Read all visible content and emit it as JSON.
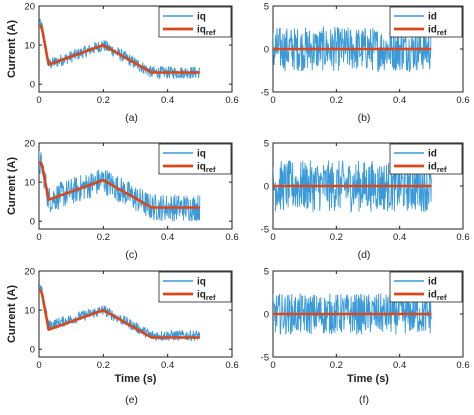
{
  "chart_data": [
    {
      "type": "line",
      "panel_label": "(a)",
      "ylabel": "Current (A)",
      "xlabel": "",
      "xlim": [
        0,
        0.6
      ],
      "ylim": [
        -2,
        20
      ],
      "xticks": [
        "0",
        "0.2",
        "0.4",
        "0.6"
      ],
      "yticks": [
        "0",
        "10",
        "20"
      ],
      "legend_position": "top-right",
      "series": [
        {
          "name": "iq",
          "kind": "noisy",
          "color": "#3a9ad9",
          "x": [
            0,
            0.01,
            0.03,
            0.2,
            0.35,
            0.5
          ],
          "values": [
            15.5,
            14.5,
            5,
            10,
            3,
            3
          ],
          "noise": 1.6
        },
        {
          "name": "iq_ref",
          "kind": "reference",
          "color": "#d9471c",
          "x": [
            0,
            0.005,
            0.01,
            0.03,
            0.2,
            0.35,
            0.5
          ],
          "values": [
            15,
            15,
            14,
            5,
            10,
            3,
            3
          ]
        }
      ]
    },
    {
      "type": "line",
      "panel_label": "(b)",
      "ylabel": "",
      "xlabel": "",
      "xlim": [
        0,
        0.6
      ],
      "ylim": [
        -5,
        5
      ],
      "xticks": [
        "0",
        "0.2",
        "0.4",
        "0.6"
      ],
      "yticks": [
        "-5",
        "0",
        "5"
      ],
      "legend_position": "top-right",
      "series": [
        {
          "name": "id",
          "kind": "noisy",
          "color": "#3a9ad9",
          "x": [
            0,
            0.5
          ],
          "values": [
            0,
            0
          ],
          "noise": 2.6
        },
        {
          "name": "id_ref",
          "kind": "reference",
          "color": "#d9471c",
          "x": [
            0,
            0.5
          ],
          "values": [
            0,
            0
          ]
        }
      ]
    },
    {
      "type": "line",
      "panel_label": "(c)",
      "ylabel": "Current (A)",
      "xlabel": "",
      "xlim": [
        0,
        0.6
      ],
      "ylim": [
        -2,
        20
      ],
      "xticks": [
        "0",
        "0.2",
        "0.4",
        "0.6"
      ],
      "yticks": [
        "0",
        "10",
        "20"
      ],
      "legend_position": "top-right",
      "series": [
        {
          "name": "iq",
          "kind": "noisy",
          "color": "#3a9ad9",
          "x": [
            0,
            0.01,
            0.03,
            0.2,
            0.35,
            0.5
          ],
          "values": [
            15,
            14,
            5.5,
            10.5,
            3.5,
            3.5
          ],
          "noise": 3.5
        },
        {
          "name": "iq_ref",
          "kind": "reference",
          "color": "#d9471c",
          "x": [
            0,
            0.005,
            0.01,
            0.03,
            0.2,
            0.35,
            0.5
          ],
          "values": [
            15,
            15,
            14,
            5.5,
            10.5,
            3.5,
            3.5
          ]
        }
      ]
    },
    {
      "type": "line",
      "panel_label": "(d)",
      "ylabel": "",
      "xlabel": "",
      "xlim": [
        0,
        0.6
      ],
      "ylim": [
        -5,
        5
      ],
      "xticks": [
        "0",
        "0.2",
        "0.4",
        "0.6"
      ],
      "yticks": [
        "-5",
        "0",
        "5"
      ],
      "legend_position": "top-right",
      "series": [
        {
          "name": "id",
          "kind": "noisy",
          "color": "#3a9ad9",
          "x": [
            0,
            0.5
          ],
          "values": [
            0,
            0
          ],
          "noise": 3.0
        },
        {
          "name": "id_ref",
          "kind": "reference",
          "color": "#d9471c",
          "x": [
            0,
            0.5
          ],
          "values": [
            0,
            0
          ]
        }
      ]
    },
    {
      "type": "line",
      "panel_label": "(e)",
      "ylabel": "Current (A)",
      "xlabel": "Time (s)",
      "xlim": [
        0,
        0.6
      ],
      "ylim": [
        -2,
        20
      ],
      "xticks": [
        "0",
        "0.2",
        "0.4",
        "0.6"
      ],
      "yticks": [
        "0",
        "10",
        "20"
      ],
      "legend_position": "top-right",
      "series": [
        {
          "name": "iq",
          "kind": "noisy",
          "color": "#3a9ad9",
          "x": [
            0,
            0.01,
            0.03,
            0.2,
            0.35,
            0.5
          ],
          "values": [
            15.5,
            14.5,
            6,
            10,
            3.5,
            3.5
          ],
          "noise": 1.4
        },
        {
          "name": "iq_ref",
          "kind": "reference",
          "color": "#d9471c",
          "x": [
            0,
            0.005,
            0.01,
            0.03,
            0.2,
            0.35,
            0.5
          ],
          "values": [
            15,
            15,
            14,
            5,
            10,
            3,
            3
          ]
        }
      ]
    },
    {
      "type": "line",
      "panel_label": "(f)",
      "ylabel": "",
      "xlabel": "Time (s)",
      "xlim": [
        0,
        0.6
      ],
      "ylim": [
        -5,
        5
      ],
      "xticks": [
        "0",
        "0.2",
        "0.4",
        "0.6"
      ],
      "yticks": [
        "-5",
        "0",
        "5"
      ],
      "legend_position": "top-right",
      "series": [
        {
          "name": "id",
          "kind": "noisy",
          "color": "#3a9ad9",
          "x": [
            0,
            0.5
          ],
          "values": [
            0,
            0
          ],
          "noise": 2.4
        },
        {
          "name": "id_ref",
          "kind": "reference",
          "color": "#d9471c",
          "x": [
            0,
            0.5
          ],
          "values": [
            0,
            0
          ]
        }
      ]
    }
  ]
}
